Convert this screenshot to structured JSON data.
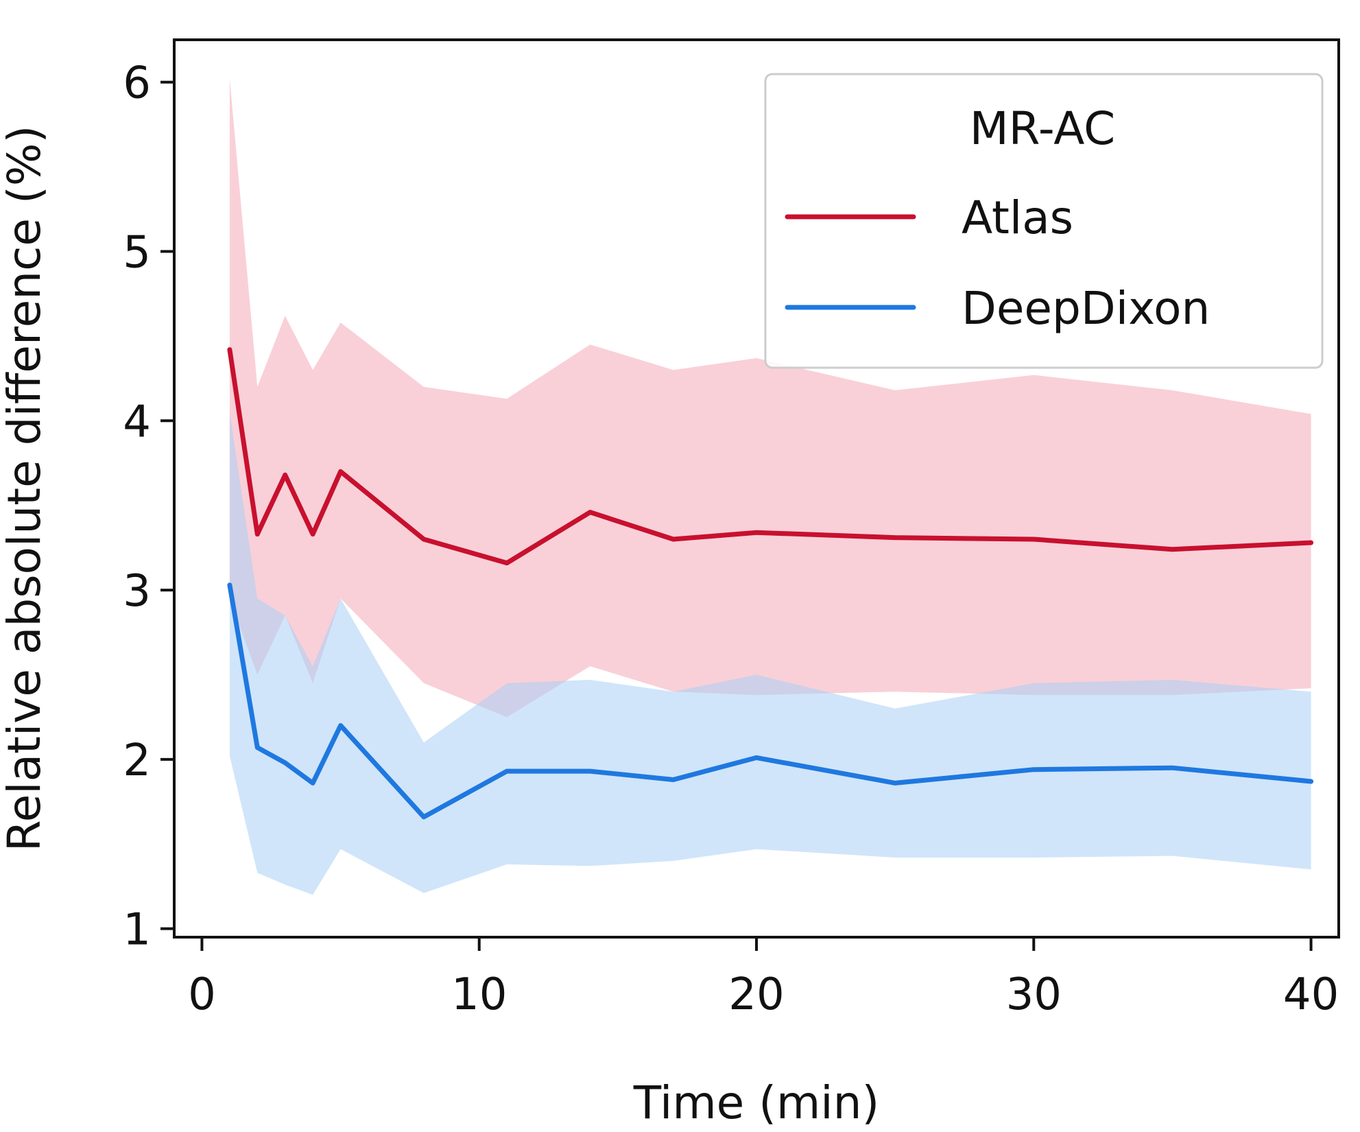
{
  "chart_data": {
    "type": "line",
    "title": "",
    "xlabel": "Time (min)",
    "ylabel": "Relative absolute difference (%)",
    "xlim": [
      -1,
      41
    ],
    "ylim": [
      0.95,
      6.25
    ],
    "xticks": [
      0,
      10,
      20,
      30,
      40
    ],
    "yticks": [
      1,
      2,
      3,
      4,
      5,
      6
    ],
    "grid": false,
    "legend": {
      "title": "MR-AC",
      "placement": "top-right"
    },
    "series": [
      {
        "name": "Atlas",
        "color": "#c8102e",
        "band_color": "#f4a9b8",
        "x": [
          1,
          2,
          3,
          4,
          5,
          8,
          11,
          14,
          17,
          20,
          25,
          30,
          35,
          40
        ],
        "y": [
          4.42,
          3.33,
          3.68,
          3.33,
          3.7,
          3.3,
          3.16,
          3.46,
          3.3,
          3.34,
          3.31,
          3.3,
          3.24,
          3.28
        ],
        "lower": [
          2.95,
          2.5,
          2.85,
          2.45,
          2.95,
          2.45,
          2.25,
          2.55,
          2.4,
          2.38,
          2.4,
          2.38,
          2.38,
          2.42
        ],
        "upper": [
          6.02,
          4.2,
          4.62,
          4.3,
          4.58,
          4.2,
          4.13,
          4.45,
          4.3,
          4.37,
          4.18,
          4.27,
          4.18,
          4.04
        ]
      },
      {
        "name": "DeepDixon",
        "color": "#1f78e0",
        "band_color": "#a9d0f5",
        "x": [
          1,
          2,
          3,
          4,
          5,
          8,
          11,
          14,
          17,
          20,
          25,
          30,
          35,
          40
        ],
        "y": [
          3.03,
          2.07,
          1.98,
          1.86,
          2.2,
          1.66,
          1.93,
          1.93,
          1.88,
          2.01,
          1.86,
          1.94,
          1.95,
          1.87
        ],
        "lower": [
          2.02,
          1.33,
          1.26,
          1.2,
          1.47,
          1.21,
          1.38,
          1.37,
          1.4,
          1.47,
          1.42,
          1.42,
          1.43,
          1.35
        ],
        "upper": [
          4.05,
          2.95,
          2.85,
          2.55,
          2.95,
          2.1,
          2.45,
          2.47,
          2.4,
          2.5,
          2.3,
          2.45,
          2.47,
          2.4
        ]
      }
    ]
  }
}
